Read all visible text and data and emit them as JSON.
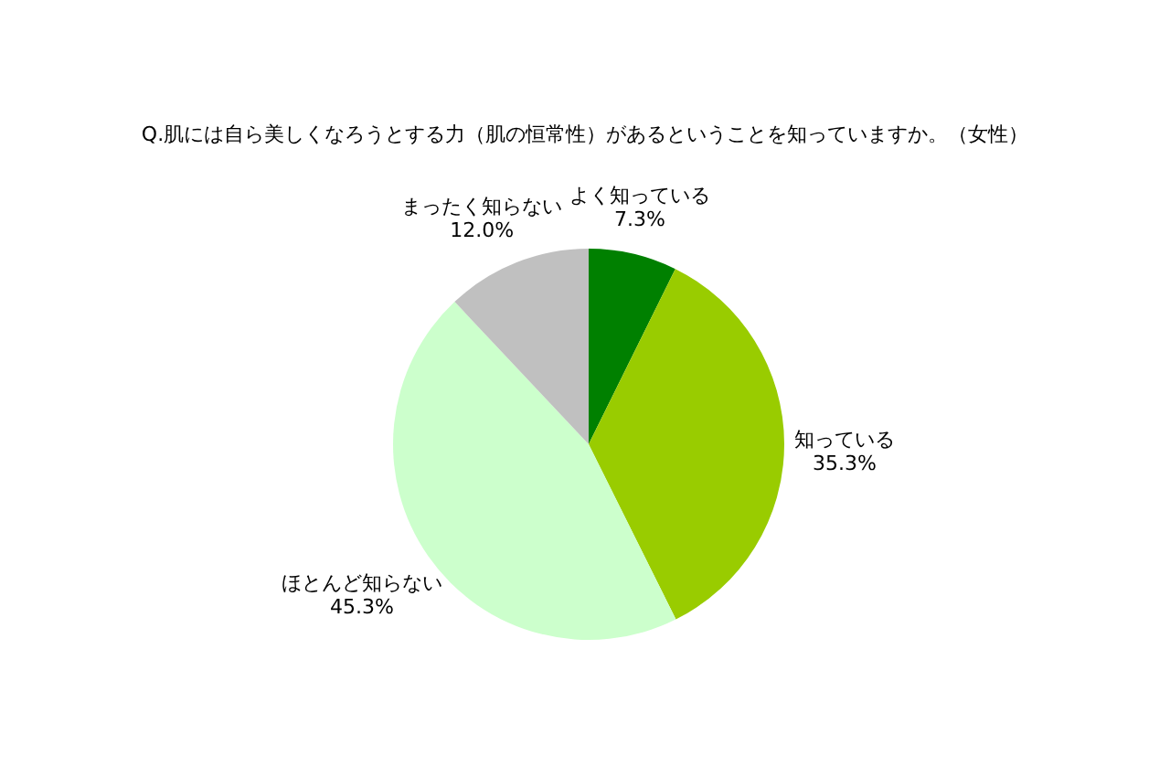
{
  "chart_data": {
    "type": "pie",
    "title": "Q.肌には自ら美しくなろうとする力（肌の恒常性）があるということを知っていますか。（女性）",
    "categories": [
      "よく知っている",
      "知っている",
      "ほとんど知らない",
      "まったく知らない"
    ],
    "values": [
      7.3,
      35.3,
      45.3,
      12.0
    ],
    "value_labels": [
      "7.3%",
      "35.3%",
      "45.3%",
      "12.0%"
    ],
    "colors": [
      "#008000",
      "#99cc00",
      "#ccffcc",
      "#c0c0c0"
    ]
  }
}
